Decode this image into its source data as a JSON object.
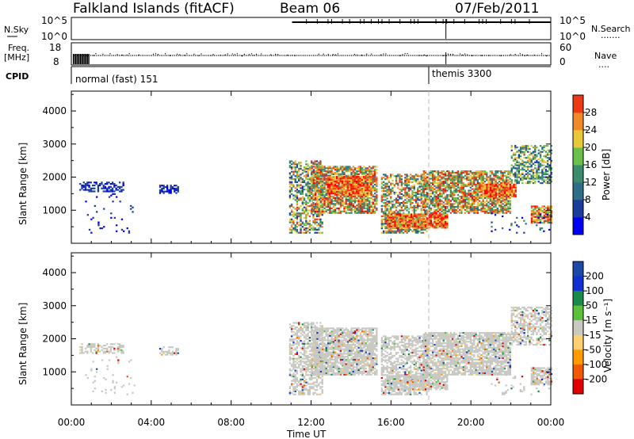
{
  "header": {
    "station": "Falkland Islands (fitACF)",
    "beam": "Beam 06",
    "date": "07/Feb/2011"
  },
  "top_panels": {
    "nsky_label": "N.Sky",
    "nsky_ticks": [
      "10^5",
      "10^0"
    ],
    "nsearch_label": "N.Search",
    "freq_label_1": "Freq.",
    "freq_label_2": "[MHz]",
    "freq_ticks": [
      "18",
      "8"
    ],
    "nave_ticks": [
      "60",
      "0"
    ],
    "nave_label": "Nave",
    "cpid_label": "CPID",
    "cpid_segments": [
      {
        "start_ut": 0.0,
        "label": "normal (fast) 151"
      },
      {
        "start_ut": 18.0,
        "label": "themis 3300"
      }
    ]
  },
  "x_axis": {
    "label": "Time UT",
    "ticks": [
      "00:00",
      "04:00",
      "08:00",
      "12:00",
      "16:00",
      "20:00",
      "00:00"
    ],
    "range_hours": [
      0,
      24
    ]
  },
  "colors": {
    "power": [
      "#0000ee",
      "#1c3c9c",
      "#2f6e84",
      "#3c8c6c",
      "#6ac04a",
      "#e8c83a",
      "#f08a28",
      "#ee3a14",
      "#ff0000"
    ],
    "velocity": [
      "#e00000",
      "#f05a00",
      "#ff9a00",
      "#ffd070",
      "#c9c9c2",
      "#c9c9c2",
      "#5cc03a",
      "#1a8a4a",
      "#1c48a8",
      "#1030d0"
    ],
    "velocity_gray": "#c8c8c2"
  },
  "chart_data": [
    {
      "type": "heatmap",
      "panel": "power",
      "ylabel": "Slant Range [km]",
      "y_ticks": [
        1000,
        2000,
        3000,
        4000
      ],
      "ylim": [
        0,
        4600
      ],
      "xlim_hours": [
        0,
        24
      ],
      "colorbar": {
        "label": "Power [dB]",
        "ticks": [
          "4",
          "8",
          "12",
          "16",
          "20",
          "24",
          "28"
        ],
        "range": [
          0,
          32
        ]
      },
      "regions": [
        {
          "t0": 0.4,
          "t1": 2.6,
          "r0": 1550,
          "r1": 1850,
          "density": 0.55,
          "v0": 2,
          "v1": 7
        },
        {
          "t0": 0.6,
          "t1": 3.2,
          "r0": 300,
          "r1": 1500,
          "density": 0.04,
          "v0": 1,
          "v1": 6
        },
        {
          "t0": 4.4,
          "t1": 5.3,
          "r0": 1500,
          "r1": 1750,
          "density": 0.6,
          "v0": 2,
          "v1": 6
        },
        {
          "t0": 10.9,
          "t1": 12.6,
          "r0": 300,
          "r1": 2500,
          "density": 0.55,
          "v0": 4,
          "v1": 26
        },
        {
          "t0": 12.0,
          "t1": 15.3,
          "r0": 900,
          "r1": 2300,
          "density": 0.75,
          "v0": 8,
          "v1": 30
        },
        {
          "t0": 12.8,
          "t1": 15.0,
          "r0": 1450,
          "r1": 2000,
          "density": 0.9,
          "v0": 18,
          "v1": 32
        },
        {
          "t0": 15.5,
          "t1": 17.8,
          "r0": 300,
          "r1": 2100,
          "density": 0.6,
          "v0": 6,
          "v1": 28
        },
        {
          "t0": 15.8,
          "t1": 18.8,
          "r0": 450,
          "r1": 900,
          "density": 0.85,
          "v0": 16,
          "v1": 32
        },
        {
          "t0": 17.6,
          "t1": 22.0,
          "r0": 900,
          "r1": 2200,
          "density": 0.75,
          "v0": 8,
          "v1": 30
        },
        {
          "t0": 20.4,
          "t1": 22.2,
          "r0": 1400,
          "r1": 1800,
          "density": 0.9,
          "v0": 18,
          "v1": 32
        },
        {
          "t0": 22.0,
          "t1": 24.0,
          "r0": 1800,
          "r1": 2950,
          "density": 0.55,
          "v0": 4,
          "v1": 22
        },
        {
          "t0": 23.0,
          "t1": 24.0,
          "r0": 600,
          "r1": 1100,
          "density": 0.8,
          "v0": 14,
          "v1": 32
        },
        {
          "t0": 21.0,
          "t1": 24.0,
          "r0": 300,
          "r1": 900,
          "density": 0.08,
          "v0": 2,
          "v1": 12
        }
      ]
    },
    {
      "type": "heatmap",
      "panel": "velocity",
      "ylabel": "Slant Range [km]",
      "y_ticks": [
        1000,
        2000,
        3000,
        4000
      ],
      "ylim": [
        0,
        4600
      ],
      "xlim_hours": [
        0,
        24
      ],
      "colorbar": {
        "label": "Velocity [m s⁻¹]",
        "ticks": [
          "200",
          "100",
          "50",
          "15",
          "-15",
          "-50",
          "-100",
          "-200"
        ]
      },
      "regions": [
        {
          "t0": 0.4,
          "t1": 2.6,
          "r0": 1550,
          "r1": 1850,
          "density": 0.55
        },
        {
          "t0": 0.6,
          "t1": 3.2,
          "r0": 300,
          "r1": 1500,
          "density": 0.04
        },
        {
          "t0": 4.4,
          "t1": 5.3,
          "r0": 1500,
          "r1": 1750,
          "density": 0.6
        },
        {
          "t0": 10.9,
          "t1": 12.6,
          "r0": 300,
          "r1": 2500,
          "density": 0.55
        },
        {
          "t0": 12.0,
          "t1": 15.3,
          "r0": 900,
          "r1": 2300,
          "density": 0.8
        },
        {
          "t0": 15.5,
          "t1": 17.8,
          "r0": 300,
          "r1": 2100,
          "density": 0.6
        },
        {
          "t0": 15.8,
          "t1": 18.8,
          "r0": 450,
          "r1": 900,
          "density": 0.8
        },
        {
          "t0": 17.6,
          "t1": 22.0,
          "r0": 900,
          "r1": 2200,
          "density": 0.8
        },
        {
          "t0": 22.0,
          "t1": 24.0,
          "r0": 1800,
          "r1": 2950,
          "density": 0.55
        },
        {
          "t0": 23.0,
          "t1": 24.0,
          "r0": 600,
          "r1": 1100,
          "density": 0.8
        },
        {
          "t0": 21.0,
          "t1": 24.0,
          "r0": 300,
          "r1": 900,
          "density": 0.08
        }
      ]
    }
  ]
}
